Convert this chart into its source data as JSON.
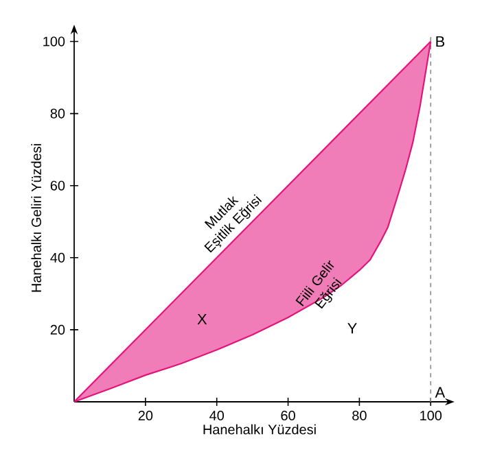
{
  "chart_data": {
    "type": "line",
    "xlabel": "Hanehalkı Yüzdesi",
    "ylabel": "Hanehalkı Geliri Yüzdesi",
    "xlim": [
      0,
      104
    ],
    "ylim": [
      0,
      102
    ],
    "xticks": [
      20,
      40,
      60,
      80,
      100
    ],
    "yticks": [
      20,
      40,
      60,
      80,
      100
    ],
    "grid": false,
    "legend": false,
    "marker": "none",
    "series": [
      {
        "name": "Mutlak Eşitlik Eğrisi",
        "color": "#e4137c",
        "x": [
          0,
          100
        ],
        "values": [
          0,
          100
        ]
      },
      {
        "name": "Fiili Gelir Eğrisi",
        "color": "#e4137c",
        "x": [
          0,
          10,
          20,
          30,
          40,
          50,
          60,
          70,
          75,
          80,
          83,
          86,
          88,
          91,
          93,
          95,
          97,
          100
        ],
        "values": [
          0,
          3.6,
          7.4,
          10.6,
          14.4,
          18.6,
          23.4,
          29,
          32.4,
          36.5,
          39.4,
          44.6,
          48.5,
          58,
          64.6,
          72,
          82,
          100
        ]
      }
    ],
    "ref_lines": [
      {
        "axis": "x",
        "value": 100,
        "color": "#8c8c8c",
        "line_style": "dashed"
      }
    ],
    "annotations": [
      "X",
      "Y",
      {
        "text": "A",
        "x": 100,
        "y": 0
      },
      {
        "text": "B",
        "x": 100,
        "y": 100
      }
    ]
  }
}
